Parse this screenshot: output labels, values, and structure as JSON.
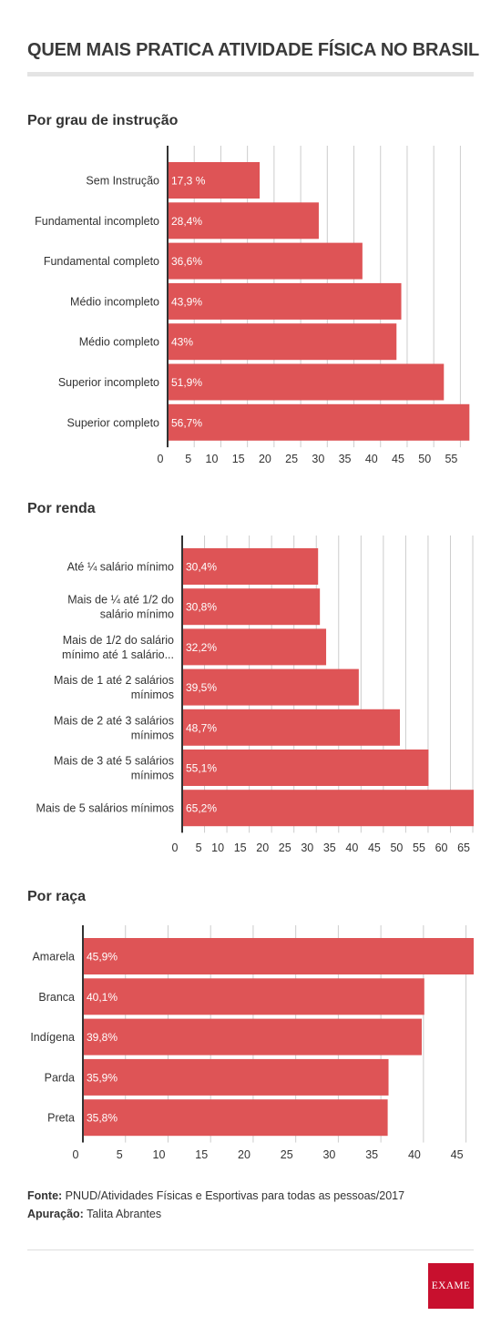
{
  "title": "QUEM MAIS PRATICA ATIVIDADE FÍSICA NO BRASIL",
  "colors": {
    "bar": "#de5456",
    "grid": "#cccccc",
    "axis": "#333333",
    "label": "#333333",
    "value_label": "#ffffff",
    "logo": "#c8102e"
  },
  "chart_data": [
    {
      "type": "bar",
      "orientation": "horizontal",
      "title": "Por grau de instrução",
      "categories": [
        [
          "Sem Instrução"
        ],
        [
          "Fundamental incompleto"
        ],
        [
          "Fundamental completo"
        ],
        [
          "Médio incompleto"
        ],
        [
          "Médio completo"
        ],
        [
          "Superior incompleto"
        ],
        [
          "Superior completo"
        ]
      ],
      "values": [
        17.3,
        28.4,
        36.6,
        43.9,
        43,
        51.9,
        56.7
      ],
      "value_labels": [
        "17,3 %",
        "28,4%",
        "36,6%",
        "43,9%",
        "43%",
        "51,9%",
        "56,7%"
      ],
      "xlim": [
        0,
        57.5
      ],
      "xticks": [
        0,
        5,
        10,
        15,
        20,
        25,
        30,
        35,
        40,
        45,
        50,
        55
      ],
      "grid": true
    },
    {
      "type": "bar",
      "orientation": "horizontal",
      "title": "Por renda",
      "categories": [
        [
          "Até ¼ salário mínimo"
        ],
        [
          "Mais de ¼ até 1/2 do",
          "salário mínimo"
        ],
        [
          "Mais de 1/2 do salário",
          "mínimo até 1 salário..."
        ],
        [
          "Mais de 1 até 2 salários",
          "mínimos"
        ],
        [
          "Mais de 2 até 3 salários",
          "mínimos"
        ],
        [
          "Mais de 3 até 5 salários",
          "mínimos"
        ],
        [
          "Mais de 5 salários mínimos"
        ]
      ],
      "values": [
        30.4,
        30.8,
        32.2,
        39.5,
        48.7,
        55.1,
        65.2
      ],
      "value_labels": [
        "30,4%",
        "30,8%",
        "32,2%",
        "39,5%",
        "48,7%",
        "55,1%",
        "65,2%"
      ],
      "xlim": [
        0,
        65.2
      ],
      "xticks": [
        0,
        5,
        10,
        15,
        20,
        25,
        30,
        35,
        40,
        45,
        50,
        55,
        60,
        65
      ],
      "grid": true
    },
    {
      "type": "bar",
      "orientation": "horizontal",
      "title": "Por raça",
      "categories": [
        [
          "Amarela"
        ],
        [
          "Branca"
        ],
        [
          "Indígena"
        ],
        [
          "Parda"
        ],
        [
          "Preta"
        ]
      ],
      "values": [
        45.9,
        40.1,
        39.8,
        35.9,
        35.8
      ],
      "value_labels": [
        "45,9%",
        "40,1%",
        "39,8%",
        "35,9%",
        "35,8%"
      ],
      "xlim": [
        0,
        45.9
      ],
      "xticks": [
        0,
        5,
        10,
        15,
        20,
        25,
        30,
        35,
        40,
        45
      ],
      "grid": true
    }
  ],
  "footer": {
    "source_label": "Fonte:",
    "source_text": "PNUD/Atividades Físicas e Esportivas para todas as pessoas/2017",
    "credit_label": "Apuração:",
    "credit_text": "Talita Abrantes"
  },
  "logo": {
    "text": "EXAME"
  }
}
